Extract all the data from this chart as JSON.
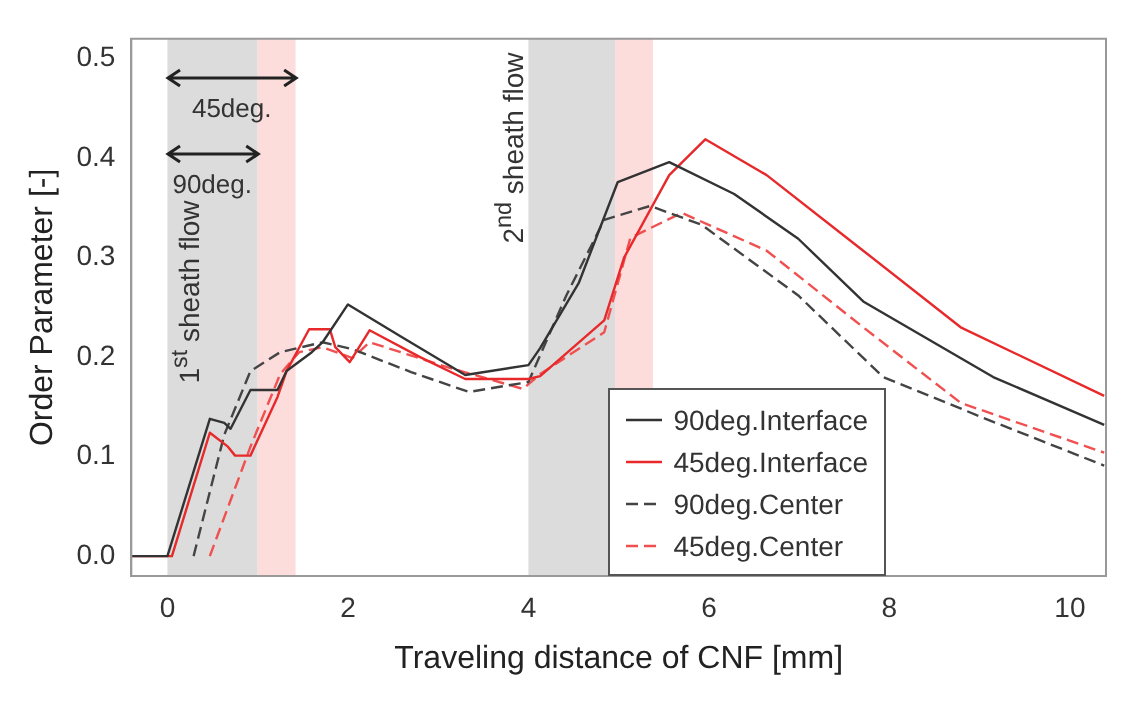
{
  "chart_data": {
    "type": "line",
    "xlabel": "Traveling distance of CNF [mm]",
    "ylabel": "Order Parameter [-]",
    "xlim": [
      -0.4,
      10.4
    ],
    "ylim": [
      -0.02,
      0.52
    ],
    "xticks": [
      0,
      2,
      4,
      6,
      8,
      10
    ],
    "yticks": [
      {
        "value": 0,
        "label": "0.0"
      },
      0.1,
      0.2,
      0.3,
      0.4,
      0.5
    ],
    "grid": false,
    "legend": "bottom right",
    "marker": "none",
    "bands": [
      {
        "axis": "x",
        "from": 0,
        "to": 1.0,
        "color": "#dcdcdc"
      },
      {
        "axis": "x",
        "from": 1.0,
        "to": 1.42,
        "color": "#fddcdc"
      },
      {
        "axis": "x",
        "from": 4.0,
        "to": 4.96,
        "color": "#dcdcdc"
      },
      {
        "axis": "x",
        "from": 4.96,
        "to": 5.38,
        "color": "#fddcdc"
      }
    ],
    "annotations": [
      "1$^{st}$ sheath flow",
      "2$^{nd}$ sheath flow",
      "45deg.",
      "90deg."
    ],
    "series": [
      {
        "name": "90deg.Interface",
        "color": "#333333",
        "line_style": "solid",
        "x": [
          -0.4,
          0,
          0.47,
          0.63,
          0.7,
          0.92,
          1.22,
          1.32,
          1.6,
          1.72,
          2.0,
          2.6,
          3.3,
          4.0,
          4.13,
          4.56,
          4.99,
          5.56,
          6.28,
          6.99,
          7.71,
          8.43,
          9.15,
          10.38
        ],
        "values": [
          0,
          0,
          0.138,
          0.134,
          0.128,
          0.167,
          0.167,
          0.186,
          0.205,
          0.215,
          0.253,
          0.22,
          0.182,
          0.192,
          0.209,
          0.275,
          0.376,
          0.396,
          0.364,
          0.319,
          0.256,
          0.218,
          0.18,
          0.132
        ]
      },
      {
        "name": "45deg.Interface",
        "color": "#e8292b",
        "line_style": "solid",
        "x": [
          -0.4,
          0.05,
          0.47,
          0.67,
          0.75,
          0.92,
          1.22,
          1.32,
          1.57,
          1.8,
          1.86,
          2.02,
          2.24,
          2.8,
          3.3,
          4.0,
          4.13,
          4.84,
          5.06,
          5.56,
          5.96,
          6.64,
          7.71,
          8.79,
          10.38
        ],
        "values": [
          0,
          0,
          0.124,
          0.11,
          0.101,
          0.101,
          0.16,
          0.186,
          0.228,
          0.228,
          0.21,
          0.195,
          0.227,
          0.2,
          0.178,
          0.178,
          0.181,
          0.237,
          0.3,
          0.383,
          0.419,
          0.383,
          0.307,
          0.23,
          0.161
        ]
      },
      {
        "name": "90deg.Center",
        "color": "#444444",
        "line_style": "dashed",
        "x": [
          0.29,
          0.63,
          0.92,
          1.25,
          1.72,
          2.05,
          2.7,
          3.34,
          4.0,
          4.42,
          4.84,
          5.35,
          5.92,
          6.99,
          7.93,
          9.15,
          10.38
        ],
        "values": [
          0,
          0.122,
          0.186,
          0.205,
          0.215,
          0.208,
          0.185,
          0.165,
          0.175,
          0.262,
          0.338,
          0.352,
          0.333,
          0.262,
          0.18,
          0.135,
          0.091
        ]
      },
      {
        "name": "45deg.Center",
        "color": "#f05050",
        "line_style": "dashed",
        "x": [
          0.47,
          0.92,
          1.25,
          1.46,
          1.72,
          2.05,
          2.24,
          3.1,
          3.94,
          4.13,
          4.84,
          5.13,
          5.7,
          6.64,
          7.71,
          8.79,
          10.38
        ],
        "values": [
          0,
          0.11,
          0.183,
          0.205,
          0.21,
          0.199,
          0.215,
          0.19,
          0.168,
          0.183,
          0.225,
          0.32,
          0.345,
          0.307,
          0.23,
          0.154,
          0.104
        ]
      }
    ]
  }
}
